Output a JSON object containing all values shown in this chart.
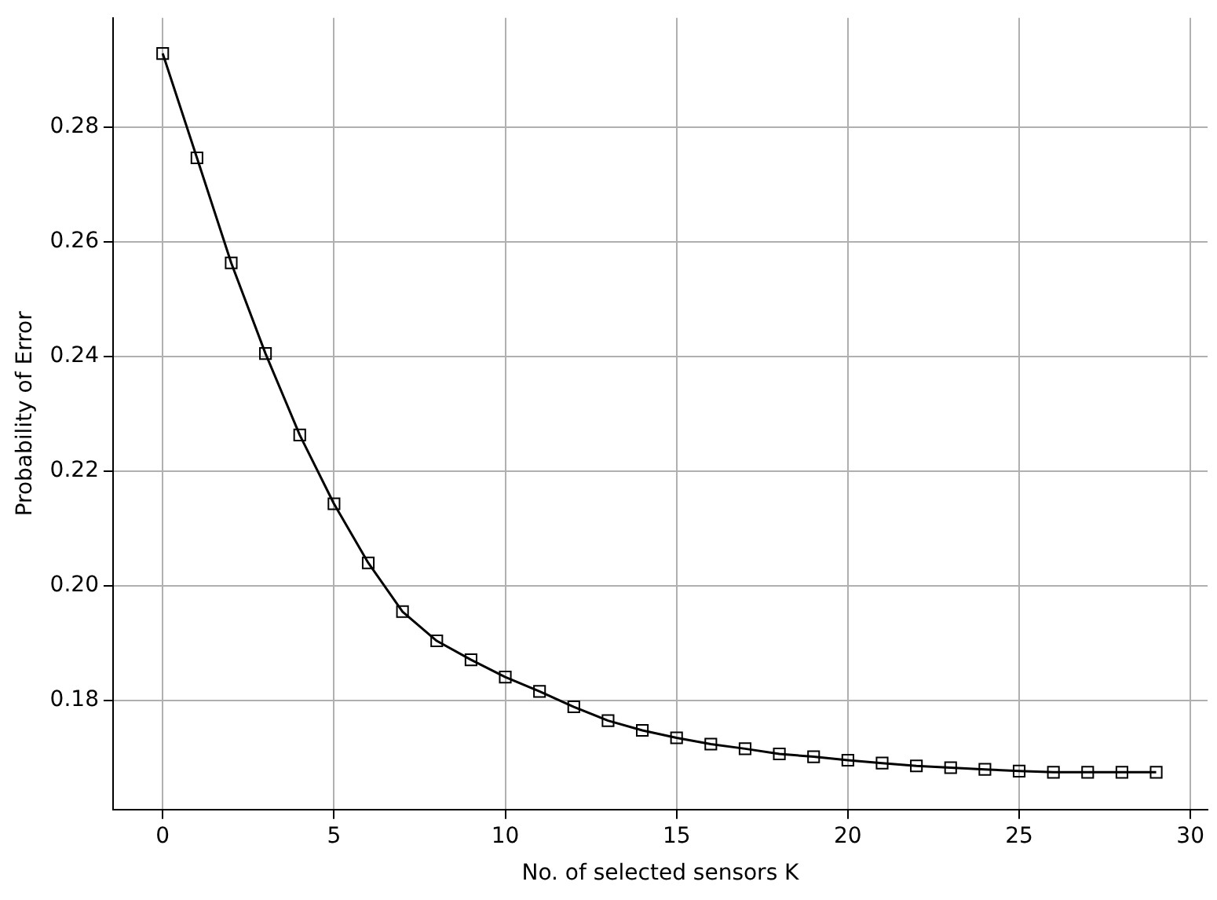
{
  "chart_data": {
    "type": "line",
    "xlabel": "No. of selected sensors K",
    "ylabel": "Probability of Error",
    "x": [
      0,
      1,
      2,
      3,
      4,
      5,
      6,
      7,
      8,
      9,
      10,
      11,
      12,
      13,
      14,
      15,
      16,
      17,
      18,
      19,
      20,
      21,
      22,
      23,
      24,
      25,
      26,
      27,
      28,
      29
    ],
    "series": [
      {
        "color": "#000000",
        "values": [
          0.2928,
          0.2746,
          0.2563,
          0.2405,
          0.2263,
          0.2143,
          0.204,
          0.1955,
          0.1904,
          0.1871,
          0.1841,
          0.1816,
          0.1789,
          0.1765,
          0.1748,
          0.1735,
          0.1724,
          0.1716,
          0.1707,
          0.1702,
          0.1696,
          0.1691,
          0.1686,
          0.1683,
          0.168,
          0.1677,
          0.1675,
          0.1675,
          0.1675,
          0.1675
        ]
      }
    ],
    "xlim": [
      -1.45,
      30.5
    ],
    "ylim": [
      0.161,
      0.299
    ],
    "xticks": [
      0,
      5,
      10,
      15,
      20,
      25,
      30
    ],
    "yticks": [
      {
        "value": 0.18,
        "label": "0.18"
      },
      {
        "value": 0.2,
        "label": "0.20"
      },
      {
        "value": 0.22,
        "label": "0.22"
      },
      {
        "value": 0.24,
        "label": "0.24"
      },
      {
        "value": 0.26,
        "label": "0.26"
      },
      {
        "value": 0.28,
        "label": "0.28"
      }
    ],
    "grid": true,
    "marker": "square",
    "line_style": "solid"
  }
}
